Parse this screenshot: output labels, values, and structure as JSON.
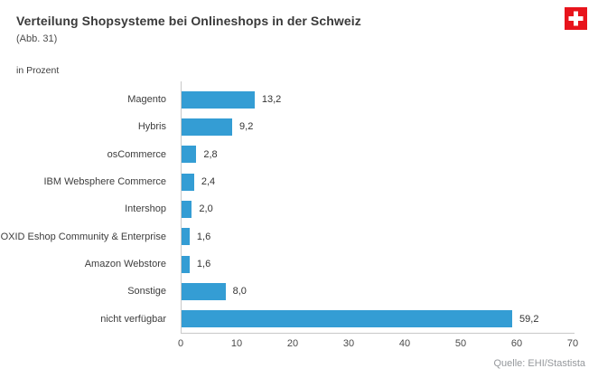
{
  "header": {
    "title": "Verteilung Shopsysteme bei Onlineshops in der Schweiz",
    "subtitle": "(Abb. 31)",
    "unit_label": "in Prozent"
  },
  "footer": {
    "source": "Quelle: EHI/Stastista"
  },
  "icons": {
    "flag": "swiss-flag-icon"
  },
  "colors": {
    "bar": "#349dd4",
    "axis": "#c9c9c9",
    "flag_red": "#e8141c",
    "title_text": "#3a3a3a",
    "source_text": "#95989c"
  },
  "chart_data": {
    "type": "bar",
    "orientation": "horizontal",
    "title": "Verteilung Shopsysteme bei Onlineshops in der Schweiz",
    "subtitle": "(Abb. 31)",
    "unit": "in Prozent",
    "categories": [
      "Magento",
      "Hybris",
      "osCommerce",
      "IBM Websphere Commerce",
      "Intershop",
      "OXID Eshop Community & Enterprise",
      "Amazon Webstore",
      "Sonstige",
      "nicht verfügbar"
    ],
    "values": [
      13.2,
      9.2,
      2.8,
      2.4,
      2.0,
      1.6,
      1.6,
      8.0,
      59.2
    ],
    "value_labels": [
      "13,2",
      "9,2",
      "2,8",
      "2,4",
      "2,0",
      "1,6",
      "1,6",
      "8,0",
      "59,2"
    ],
    "xlabel": "",
    "ylabel": "",
    "xlim": [
      0,
      70
    ],
    "x_ticks": [
      0,
      10,
      20,
      30,
      40,
      50,
      60,
      70
    ],
    "grid": false,
    "legend": false,
    "source": "Quelle: EHI/Stastista"
  }
}
